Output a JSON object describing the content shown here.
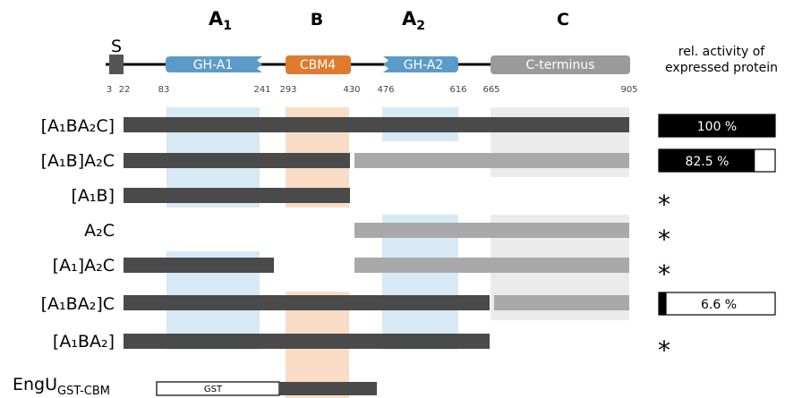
{
  "domain_headers": [
    "A1",
    "B",
    "A2",
    "C"
  ],
  "signal": "S",
  "domains": {
    "gh_a1": "GH-A1",
    "cbm4": "CBM4",
    "gh_a2": "GH-A2",
    "c_terminus": "C-terminus"
  },
  "positions": [
    "3",
    "22",
    "83",
    "241",
    "293",
    "430",
    "476",
    "616",
    "665",
    "905"
  ],
  "activity_header": [
    "rel. activity of",
    "expressed protein"
  ],
  "constructs": [
    {
      "id": "A1BA2C",
      "label": "[A₁BA₂C]",
      "activity_label": "100 %",
      "activity_fraction": 1.0
    },
    {
      "id": "A1B_A2C",
      "label": "[A₁B]A₂C",
      "activity_label": "82.5 %",
      "activity_fraction": 0.825
    },
    {
      "id": "A1B",
      "label": "[A₁B]",
      "activity_label": "*",
      "activity_fraction": null
    },
    {
      "id": "A2C",
      "label": "A₂C",
      "activity_label": "*",
      "activity_fraction": null
    },
    {
      "id": "A1_A2C",
      "label": "[A₁]A₂C",
      "activity_label": "*",
      "activity_fraction": null
    },
    {
      "id": "A1BA2_C",
      "label": "[A₁BA₂]C",
      "activity_label": "6.6 %",
      "activity_fraction": 0.066
    },
    {
      "id": "A1BA2",
      "label": "[A₁BA₂]",
      "activity_label": "*",
      "activity_fraction": null
    },
    {
      "id": "EngU",
      "label": "EngU",
      "label_sub": "GST-CBM",
      "gst_label": "GST"
    }
  ],
  "colors": {
    "gh": "#5b9bc8",
    "cbm4": "#e07a2e",
    "cterm": "#9a9a9a",
    "signal": "#555555",
    "dark_bar": "#4a4a4a",
    "light_bar": "#a9a9a9",
    "shade_blue": "#d6e9f4",
    "shade_orange": "#f9dcc6",
    "shade_gray": "#ebebeb"
  }
}
